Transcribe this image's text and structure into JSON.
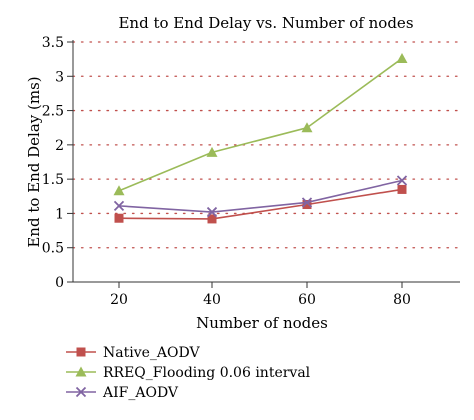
{
  "chart_data": {
    "type": "line",
    "title": "End to End Delay vs. Number of nodes",
    "xlabel": "Number of nodes",
    "ylabel": "End to End Delay (ms)",
    "categories": [
      20,
      40,
      60,
      80
    ],
    "ylim": [
      0,
      3.5
    ],
    "yticks": [
      "0",
      "0.5",
      "1",
      "1.5",
      "2",
      "2.5",
      "3",
      "3.5"
    ],
    "grid": true,
    "legend_position": "bottom-left",
    "series": [
      {
        "name": "Native_AODV",
        "values": [
          0.93,
          0.92,
          1.13,
          1.35
        ],
        "color": "#c0504d",
        "marker": "square"
      },
      {
        "name": "RREQ_Flooding 0.06 interval",
        "values": [
          1.33,
          1.89,
          2.25,
          3.26
        ],
        "color": "#9bbb59",
        "marker": "triangle"
      },
      {
        "name": "AIF_AODV",
        "values": [
          1.11,
          1.02,
          1.16,
          1.48
        ],
        "color": "#8064a2",
        "marker": "x"
      }
    ]
  }
}
